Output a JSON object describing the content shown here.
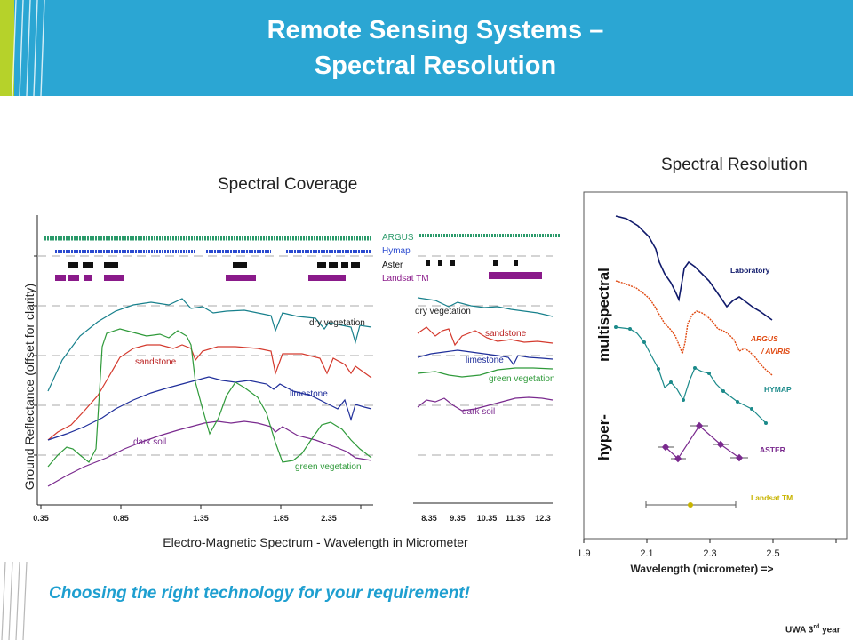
{
  "slide": {
    "title_line1": "Remote Sensing Systems –",
    "title_line2": "Spectral Resolution",
    "tagline": "Choosing the right technology for your requirement!",
    "footer_org": "UWA 3",
    "footer_sup": "rd",
    "footer_suffix": " year",
    "colors": {
      "header": "#2ba6d3",
      "accent": "#b6d22a",
      "tagline": "#1e9fd0"
    }
  },
  "coverage": {
    "heading": "Spectral Coverage",
    "ylabel": "Ground Reflectance  (offset for clarity)",
    "xlabel": "Electro-Magnetic Spectrum - Wavelength in Micrometer",
    "ticks_left": [
      "0.35",
      "0.85",
      "1.35",
      "1.85",
      "2.35"
    ],
    "ticks_right": [
      "8.35",
      "9.35",
      "10.35",
      "11.35",
      "12.3"
    ],
    "sensors": [
      "ARGUS",
      "Hymap",
      "Aster",
      "Landsat TM"
    ],
    "curve_labels_left": [
      "dry vegetation",
      "sandstone",
      "limestone",
      "dark soil",
      "green vegetation"
    ],
    "curve_labels_right": [
      "dry vegetation",
      "sandstone",
      "limestone",
      "green vegetation",
      "dark soil"
    ]
  },
  "resolution": {
    "heading": "Spectral Resolution",
    "xlabel": "Wavelength (micrometer) =>",
    "ticks": [
      "1.9",
      "2.1",
      "2.3",
      "2.5"
    ],
    "side_top": "multispectral",
    "side_bottom": "hyper-",
    "series": [
      "Laboratory",
      "ARGUS",
      "/ AVIRIS",
      "HYMAP",
      "ASTER",
      "Landsat TM"
    ]
  },
  "chart_data": [
    {
      "type": "line",
      "title": "Spectral Coverage",
      "xlabel": "Electro-Magnetic Spectrum - Wavelength in Micrometer",
      "ylabel": "Ground Reflectance  (offset for clarity)",
      "xlim": [
        0.35,
        2.5
      ],
      "series": [
        {
          "name": "dry vegetation",
          "color": "#17808c"
        },
        {
          "name": "sandstone",
          "color": "#d43a2e"
        },
        {
          "name": "limestone",
          "color": "#1f2e9a"
        },
        {
          "name": "dark soil",
          "color": "#7a2a8e"
        },
        {
          "name": "green vegetation",
          "color": "#2f9a3a"
        }
      ]
    },
    {
      "type": "line",
      "title": "Spectral Resolution",
      "xlabel": "Wavelength (micrometer) =>",
      "xlim": [
        1.9,
        2.7
      ],
      "series": [
        {
          "name": "Laboratory",
          "color": "#101a6b"
        },
        {
          "name": "ARGUS / AVIRIS",
          "color": "#e04a12"
        },
        {
          "name": "HYMAP",
          "color": "#1b8a8a"
        },
        {
          "name": "ASTER",
          "color": "#7a2a8e"
        },
        {
          "name": "Landsat TM",
          "color": "#c8b400"
        }
      ]
    }
  ]
}
